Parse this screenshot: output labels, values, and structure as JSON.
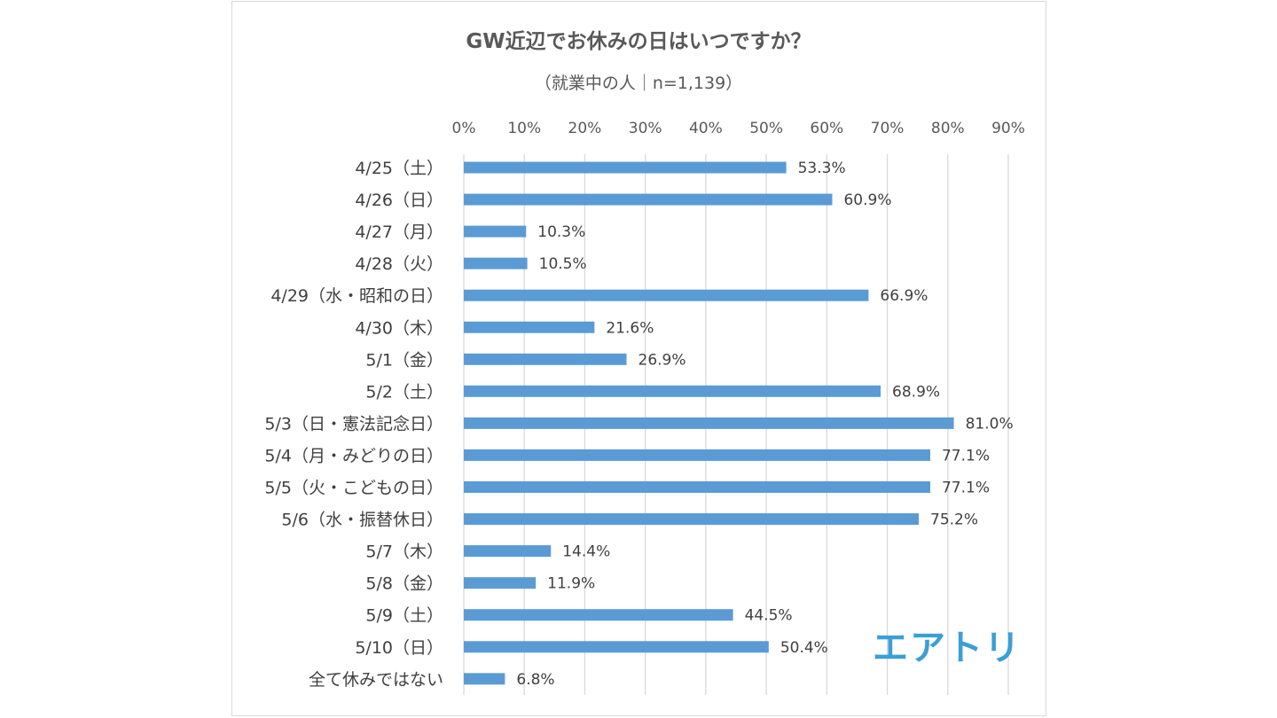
{
  "chart_data": {
    "type": "bar",
    "orientation": "horizontal",
    "title": "GW近辺でお休みの日はいつですか？",
    "subtitle": "（就業中の人｜n=1,139）",
    "xlim": [
      0,
      90
    ],
    "x_ticks": [
      "0%",
      "10%",
      "20%",
      "30%",
      "40%",
      "50%",
      "60%",
      "70%",
      "80%",
      "90%"
    ],
    "grid": true,
    "bar_color": "#5b9bd5",
    "categories": [
      "4/25（土）",
      "4/26（日）",
      "4/27（月）",
      "4/28（火）",
      "4/29（水・昭和の日）",
      "4/30（木）",
      "5/1（金）",
      "5/2（土）",
      "5/3（日・憲法記念日）",
      "5/4（月・みどりの日）",
      "5/5（火・こどもの日）",
      "5/6（水・振替休日）",
      "5/7（木）",
      "5/8（金）",
      "5/9（土）",
      "5/10（日）",
      "全て休みではない"
    ],
    "values": [
      53.3,
      60.9,
      10.3,
      10.5,
      66.9,
      21.6,
      26.9,
      68.9,
      81.0,
      77.1,
      77.1,
      75.2,
      14.4,
      11.9,
      44.5,
      50.4,
      6.8
    ],
    "data_labels": [
      "53.3%",
      "60.9%",
      "10.3%",
      "10.5%",
      "66.9%",
      "21.6%",
      "26.9%",
      "68.9%",
      "81.0%",
      "77.1%",
      "77.1%",
      "75.2%",
      "14.4%",
      "11.9%",
      "44.5%",
      "50.4%",
      "6.8%"
    ]
  },
  "logo": {
    "text": "エアトリ",
    "color": "#3b9fd6"
  }
}
